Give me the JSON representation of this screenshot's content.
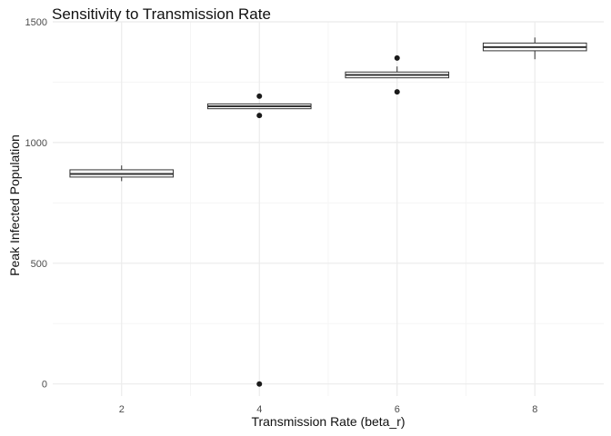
{
  "chart_data": {
    "type": "box",
    "title": "Sensitivity to Transmission Rate",
    "xlabel": "Transmission Rate (beta_r)",
    "ylabel": "Peak Infected Population",
    "x_ticks": [
      2,
      4,
      6,
      8
    ],
    "y_ticks": [
      0,
      500,
      1000,
      1500
    ],
    "xlim": [
      1,
      9
    ],
    "ylim": [
      -50,
      1500
    ],
    "grid": true,
    "boxes": [
      {
        "x": 2,
        "whisker_low": 840,
        "q1": 857,
        "median": 870,
        "q3": 887,
        "whisker_high": 905,
        "outliers": []
      },
      {
        "x": 4,
        "whisker_low": 1140,
        "q1": 1140,
        "median": 1150,
        "q3": 1160,
        "whisker_high": 1160,
        "outliers": [
          1192,
          1112,
          0
        ]
      },
      {
        "x": 6,
        "whisker_low": 1268,
        "q1": 1268,
        "median": 1280,
        "q3": 1292,
        "whisker_high": 1315,
        "outliers": [
          1350,
          1210
        ]
      },
      {
        "x": 8,
        "whisker_low": 1345,
        "q1": 1380,
        "median": 1395,
        "q3": 1412,
        "whisker_high": 1435,
        "outliers": []
      }
    ],
    "colors": {
      "box_line": "#333333",
      "box_fill": "#ffffff",
      "grid_major": "#ebebeb",
      "grid_minor": "#f5f5f5",
      "point": "#1a1a1a"
    }
  }
}
